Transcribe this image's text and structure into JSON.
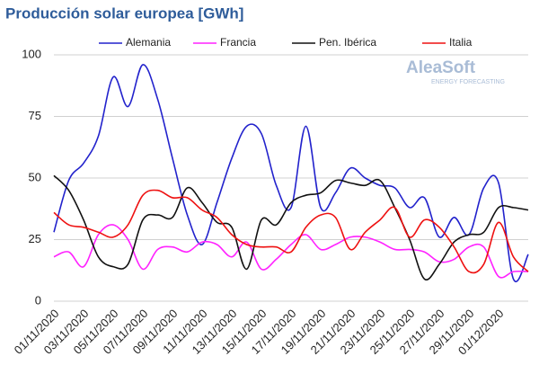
{
  "chart_data": {
    "type": "line",
    "title": "Producción solar europea [GWh]",
    "watermark": [
      "AleaSoft",
      "ENERGY FORECASTING"
    ],
    "categories": [
      "01/11/2020",
      null,
      "03/11/2020",
      null,
      "05/11/2020",
      null,
      "07/11/2020",
      null,
      "09/11/2020",
      null,
      "11/11/2020",
      null,
      "13/11/2020",
      null,
      "15/11/2020",
      null,
      "17/11/2020",
      null,
      "19/11/2020",
      null,
      "21/11/2020",
      null,
      "23/11/2020",
      null,
      "25/11/2020",
      null,
      "27/11/2020",
      null,
      "29/11/2020",
      null,
      "01/12/2020",
      null,
      null
    ],
    "series": [
      {
        "name": "Alemania",
        "color": "#2222cc",
        "values": [
          28,
          49,
          56,
          67,
          91,
          79,
          96,
          82,
          58,
          35,
          23,
          40,
          58,
          71,
          68,
          47,
          38,
          71,
          38,
          44,
          54,
          50,
          47,
          46,
          38,
          42,
          26,
          34,
          27,
          46,
          48,
          9,
          19
        ]
      },
      {
        "name": "Francia",
        "color": "#ff22ff",
        "values": [
          18,
          20,
          14,
          27,
          31,
          25,
          13,
          21,
          22,
          20,
          24,
          23,
          18,
          24,
          13,
          17,
          23,
          27,
          21,
          23,
          26,
          26,
          24,
          21,
          21,
          20,
          16,
          17,
          22,
          22,
          10,
          12,
          12
        ]
      },
      {
        "name": "Pen. Ibérica",
        "color": "#111111",
        "values": [
          51,
          45,
          33,
          18,
          14,
          15,
          33,
          35,
          34,
          46,
          40,
          32,
          30,
          13,
          33,
          31,
          40,
          43,
          44,
          49,
          48,
          47,
          49,
          38,
          25,
          9,
          15,
          24,
          27,
          28,
          38,
          38,
          37
        ]
      },
      {
        "name": "Italia",
        "color": "#ee1111",
        "values": [
          36,
          31,
          30,
          28,
          26,
          31,
          43,
          45,
          42,
          42,
          37,
          34,
          27,
          23,
          22,
          22,
          20,
          30,
          35,
          34,
          21,
          28,
          33,
          38,
          26,
          33,
          30,
          22,
          12,
          15,
          32,
          18,
          12
        ]
      }
    ],
    "ylim": [
      0,
      100
    ],
    "yticks": [
      0,
      25,
      50,
      75,
      100
    ],
    "grid": true
  }
}
